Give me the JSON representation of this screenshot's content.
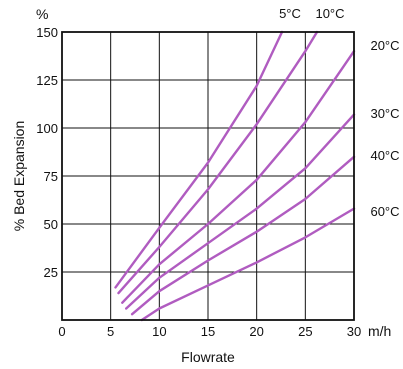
{
  "chart_data": {
    "type": "line",
    "title": "",
    "xlabel": "Flowrate",
    "x_unit": "m/h",
    "ylabel": "% Bed Expansion",
    "y_unit": "%",
    "xlim": [
      0,
      30
    ],
    "ylim": [
      0,
      150
    ],
    "x_ticks": [
      "0",
      "5",
      "10",
      "15",
      "20",
      "25",
      "30"
    ],
    "y_ticks": [
      "25",
      "50",
      "75",
      "100",
      "125",
      "150"
    ],
    "grid": true,
    "legend": "inline labels at curve ends",
    "line_color": "#b05cc0",
    "series": [
      {
        "name": "5°C",
        "x": [
          5.5,
          10,
          15,
          20,
          22.6
        ],
        "y": [
          17,
          48,
          82,
          122,
          150
        ]
      },
      {
        "name": "10°C",
        "x": [
          5.8,
          10,
          15,
          20,
          25,
          26.2
        ],
        "y": [
          14,
          38,
          68,
          102,
          140,
          150
        ]
      },
      {
        "name": "20°C",
        "x": [
          6.2,
          10,
          15,
          20,
          25,
          30
        ],
        "y": [
          9,
          29,
          50,
          73,
          103,
          140
        ]
      },
      {
        "name": "30°C",
        "x": [
          6.6,
          10,
          15,
          20,
          25,
          30
        ],
        "y": [
          6,
          22,
          40,
          58,
          79,
          107
        ]
      },
      {
        "name": "40°C",
        "x": [
          7.2,
          10,
          15,
          20,
          25,
          30
        ],
        "y": [
          3,
          15,
          31,
          46,
          63,
          85
        ]
      },
      {
        "name": "60°C",
        "x": [
          8.2,
          10,
          15,
          20,
          25,
          30
        ],
        "y": [
          0,
          6,
          18,
          30,
          43,
          58
        ]
      }
    ]
  }
}
